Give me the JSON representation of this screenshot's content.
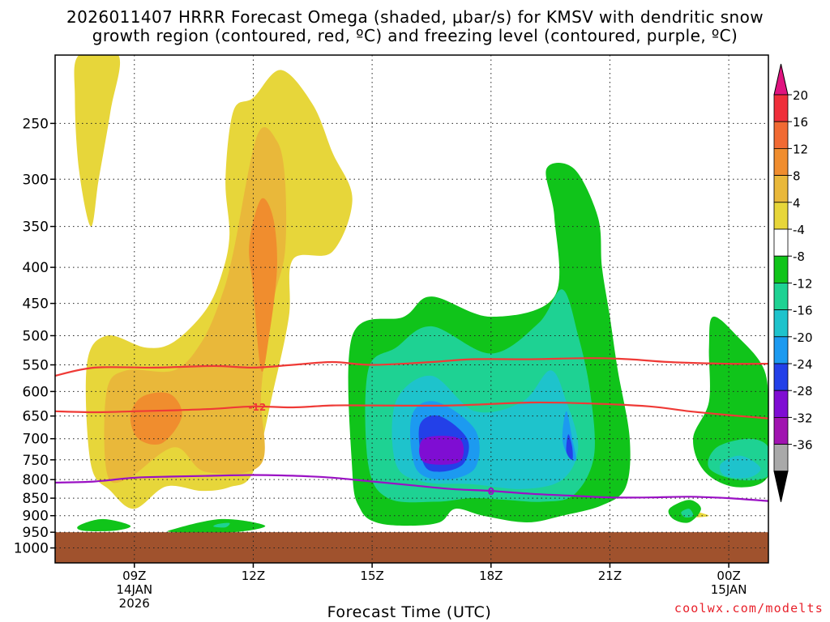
{
  "title_line1": "2026011407 HRRR Forecast Omega (shaded, μbar/s) for KMSV with dendritic snow",
  "title_line2": "growth region (contoured, red, ºC) and freezing level (contoured, purple, ºC)",
  "credit": "coolwx.com/modelts",
  "chart_data": {
    "type": "contour-timeheight",
    "xlabel": "Forecast Time (UTC)",
    "ylabel": "",
    "x_start_hour": 7,
    "x_end_hour": 25,
    "x_ticks": [
      {
        "hour": 9,
        "lines": [
          "09Z",
          "14JAN",
          "2026"
        ]
      },
      {
        "hour": 12,
        "lines": [
          "12Z"
        ]
      },
      {
        "hour": 15,
        "lines": [
          "15Z"
        ]
      },
      {
        "hour": 18,
        "lines": [
          "18Z"
        ]
      },
      {
        "hour": 21,
        "lines": [
          "21Z"
        ]
      },
      {
        "hour": 24,
        "lines": [
          "00Z",
          "15JAN"
        ]
      }
    ],
    "y_ticks": [
      250,
      300,
      350,
      400,
      450,
      500,
      550,
      600,
      650,
      700,
      750,
      800,
      850,
      900,
      950,
      1000
    ],
    "ylim_hPa": [
      200,
      1050
    ],
    "ground_level_hPa": 950,
    "colorbar": {
      "labels": [
        "20",
        "16",
        "12",
        "8",
        "4",
        "-4",
        "-8",
        "-12",
        "-16",
        "-20",
        "-24",
        "-28",
        "-32",
        "-36"
      ],
      "colors": [
        "#ef2e3a",
        "#f16a33",
        "#f08d2e",
        "#e9b83a",
        "#e7d63a",
        "#ffffff",
        "#10c41a",
        "#1ed293",
        "#1ec3cc",
        "#1c9af0",
        "#2340e8",
        "#7f0dd3",
        "#a014b0",
        "#a9a9a9"
      ],
      "top_cap": "#e0137f",
      "bottom_cap": "#000000"
    },
    "omega_regions": [
      {
        "value": 4,
        "color": "#e7d63a",
        "points": [
          [
            7.6,
            200
          ],
          [
            8.6,
            200
          ],
          [
            8.4,
            240
          ],
          [
            8.1,
            300
          ],
          [
            7.9,
            350
          ],
          [
            7.6,
            290
          ],
          [
            7.5,
            230
          ]
        ]
      },
      {
        "value": 4,
        "color": "#e7d63a",
        "points": [
          [
            11.5,
            240
          ],
          [
            12.0,
            230
          ],
          [
            12.7,
            210
          ],
          [
            13.5,
            235
          ],
          [
            14,
            275
          ],
          [
            14.5,
            320
          ],
          [
            14.0,
            380
          ],
          [
            13.0,
            390
          ],
          [
            12.9,
            470
          ],
          [
            12.5,
            600
          ],
          [
            12.0,
            780
          ],
          [
            11.4,
            820
          ],
          [
            10.7,
            830
          ],
          [
            9.8,
            818
          ],
          [
            9.0,
            880
          ],
          [
            8.4,
            830
          ],
          [
            7.9,
            760
          ],
          [
            7.8,
            550
          ],
          [
            8.3,
            500
          ],
          [
            9.3,
            520
          ],
          [
            10.0,
            510
          ],
          [
            10.8,
            460
          ],
          [
            11.2,
            410
          ],
          [
            11.4,
            360
          ],
          [
            11.3,
            300
          ]
        ]
      },
      {
        "value": 8,
        "color": "#e9b83a",
        "points": [
          [
            12.1,
            260
          ],
          [
            12.6,
            265
          ],
          [
            12.8,
            300
          ],
          [
            12.8,
            380
          ],
          [
            12.5,
            450
          ],
          [
            12.2,
            600
          ],
          [
            12.2,
            760
          ],
          [
            10.8,
            780
          ],
          [
            10.0,
            720
          ],
          [
            8.8,
            800
          ],
          [
            8.3,
            780
          ],
          [
            8.3,
            600
          ],
          [
            8.8,
            560
          ],
          [
            10,
            560
          ],
          [
            10.7,
            510
          ],
          [
            11.2,
            440
          ],
          [
            11.5,
            380
          ]
        ]
      },
      {
        "value": 12,
        "color": "#f08d2e",
        "points": [
          [
            12.2,
            320
          ],
          [
            12.5,
            340
          ],
          [
            12.6,
            400
          ],
          [
            12.4,
            500
          ],
          [
            12.2,
            560
          ],
          [
            12.0,
            430
          ],
          [
            11.9,
            370
          ]
        ]
      },
      {
        "value": 12,
        "color": "#f08d2e",
        "points": [
          [
            9.2,
            610
          ],
          [
            9.9,
            605
          ],
          [
            10.2,
            650
          ],
          [
            9.7,
            710
          ],
          [
            9.1,
            700
          ],
          [
            8.9,
            650
          ]
        ]
      },
      {
        "value": 4,
        "color": "#e7d63a",
        "points": [
          [
            22.8,
            880
          ],
          [
            23.5,
            900
          ],
          [
            22.9,
            905
          ],
          [
            22.6,
            895
          ]
        ]
      },
      {
        "value": -4,
        "color": "#10c41a",
        "points": [
          [
            14.5,
            500
          ],
          [
            15.8,
            470
          ],
          [
            16.5,
            440
          ],
          [
            18.0,
            470
          ],
          [
            19.6,
            440
          ],
          [
            19.6,
            340
          ],
          [
            19.4,
            290
          ],
          [
            20.1,
            290
          ],
          [
            20.7,
            340
          ],
          [
            20.8,
            400
          ],
          [
            21.0,
            470
          ],
          [
            21.2,
            560
          ],
          [
            21.5,
            700
          ],
          [
            21.4,
            820
          ],
          [
            20.8,
            870
          ],
          [
            19.8,
            900
          ],
          [
            18.9,
            920
          ],
          [
            17.8,
            900
          ],
          [
            17.1,
            880
          ],
          [
            16.7,
            920
          ],
          [
            15.9,
            930
          ],
          [
            15.1,
            920
          ],
          [
            14.7,
            880
          ],
          [
            14.5,
            780
          ]
        ]
      },
      {
        "value": -8,
        "color": "#1ed293",
        "points": [
          [
            14.9,
            560
          ],
          [
            15.6,
            520
          ],
          [
            16.5,
            485
          ],
          [
            18.0,
            530
          ],
          [
            19.2,
            480
          ],
          [
            19.8,
            430
          ],
          [
            20.2,
            500
          ],
          [
            20.5,
            600
          ],
          [
            20.6,
            740
          ],
          [
            20.1,
            840
          ],
          [
            19.3,
            860
          ],
          [
            18.4,
            855
          ],
          [
            17.5,
            850
          ],
          [
            16.6,
            860
          ],
          [
            15.4,
            850
          ],
          [
            14.9,
            760
          ]
        ]
      },
      {
        "value": -12,
        "color": "#1ec3cc",
        "points": [
          [
            15.6,
            620
          ],
          [
            16.5,
            570
          ],
          [
            17.6,
            640
          ],
          [
            18.8,
            620
          ],
          [
            19.5,
            560
          ],
          [
            19.9,
            620
          ],
          [
            20.2,
            720
          ],
          [
            19.8,
            800
          ],
          [
            18.8,
            825
          ],
          [
            17.5,
            812
          ],
          [
            16.3,
            806
          ],
          [
            15.6,
            760
          ]
        ]
      },
      {
        "value": -16,
        "color": "#1c9af0",
        "points": [
          [
            16.0,
            650
          ],
          [
            16.6,
            620
          ],
          [
            17.6,
            680
          ],
          [
            17.6,
            770
          ],
          [
            16.8,
            800
          ],
          [
            16.1,
            770
          ]
        ]
      },
      {
        "value": -16,
        "color": "#1c9af0",
        "points": [
          [
            19.9,
            640
          ],
          [
            20.05,
            700
          ],
          [
            20.15,
            750
          ],
          [
            19.95,
            740
          ],
          [
            19.8,
            700
          ]
        ]
      },
      {
        "value": -20,
        "color": "#2340e8",
        "points": [
          [
            16.2,
            670
          ],
          [
            16.7,
            650
          ],
          [
            17.4,
            700
          ],
          [
            17.3,
            760
          ],
          [
            16.7,
            780
          ],
          [
            16.3,
            760
          ]
        ]
      },
      {
        "value": -20,
        "color": "#2340e8",
        "points": [
          [
            19.95,
            690
          ],
          [
            20.05,
            720
          ],
          [
            20.05,
            750
          ],
          [
            19.9,
            730
          ]
        ]
      },
      {
        "value": -24,
        "color": "#7f0dd3",
        "points": [
          [
            16.3,
            700
          ],
          [
            17.2,
            700
          ],
          [
            17.2,
            755
          ],
          [
            16.3,
            755
          ]
        ]
      },
      {
        "value": -4,
        "color": "#10c41a",
        "points": [
          [
            23.6,
            470
          ],
          [
            24.2,
            500
          ],
          [
            24.9,
            560
          ],
          [
            25,
            660
          ],
          [
            25,
            790
          ],
          [
            24.2,
            820
          ],
          [
            23.4,
            780
          ],
          [
            23.1,
            700
          ],
          [
            23.5,
            620
          ],
          [
            23.5,
            520
          ]
        ]
      },
      {
        "value": -8,
        "color": "#1ed293",
        "points": [
          [
            23.7,
            720
          ],
          [
            24.5,
            700
          ],
          [
            25,
            720
          ],
          [
            25,
            790
          ],
          [
            24.2,
            800
          ],
          [
            23.5,
            770
          ]
        ]
      },
      {
        "value": -12,
        "color": "#1ec3cc",
        "points": [
          [
            23.8,
            760
          ],
          [
            24.3,
            740
          ],
          [
            24.8,
            770
          ],
          [
            24.5,
            795
          ],
          [
            23.9,
            790
          ]
        ]
      },
      {
        "value": -4,
        "color": "#10c41a",
        "points": [
          [
            22.5,
            880
          ],
          [
            23.0,
            855
          ],
          [
            23.3,
            880
          ],
          [
            23.0,
            920
          ],
          [
            22.6,
            910
          ]
        ]
      },
      {
        "value": -4,
        "color": "#10c41a",
        "points": [
          [
            7.6,
            930
          ],
          [
            8.2,
            910
          ],
          [
            8.9,
            930
          ],
          [
            8.5,
            945
          ],
          [
            7.7,
            945
          ]
        ]
      },
      {
        "value": -4,
        "color": "#10c41a",
        "points": [
          [
            10.0,
            940
          ],
          [
            11.2,
            910
          ],
          [
            12.3,
            930
          ],
          [
            11.5,
            950
          ],
          [
            10.0,
            950
          ]
        ]
      },
      {
        "value": -8,
        "color": "#1ed293",
        "points": [
          [
            22.8,
            890
          ],
          [
            23.0,
            880
          ],
          [
            23.1,
            900
          ],
          [
            22.9,
            905
          ]
        ]
      },
      {
        "value": -8,
        "color": "#1ed293",
        "points": [
          [
            11.1,
            925
          ],
          [
            11.4,
            922
          ],
          [
            11.3,
            935
          ],
          [
            11.0,
            933
          ]
        ]
      }
    ],
    "contours": [
      {
        "name": "",
        "color": "#ef3a36",
        "points": [
          [
            7,
            570
          ],
          [
            8,
            555
          ],
          [
            9.5,
            555
          ],
          [
            11,
            552
          ],
          [
            12,
            555
          ],
          [
            13,
            550
          ],
          [
            14,
            545
          ],
          [
            15,
            550
          ],
          [
            16.5,
            545
          ],
          [
            17.5,
            540
          ],
          [
            19,
            540
          ],
          [
            20.5,
            538
          ],
          [
            21.5,
            540
          ],
          [
            22.5,
            545
          ],
          [
            24,
            548
          ],
          [
            25,
            548
          ]
        ]
      },
      {
        "name": "",
        "color": "#ef3a36",
        "label": "-12",
        "label_at": 12.1,
        "points": [
          [
            7,
            640
          ],
          [
            8,
            642
          ],
          [
            9,
            640
          ],
          [
            10,
            638
          ],
          [
            11,
            635
          ],
          [
            12,
            630
          ],
          [
            13,
            632
          ],
          [
            14,
            628
          ],
          [
            15,
            628
          ],
          [
            17,
            628
          ],
          [
            19,
            622
          ],
          [
            20.5,
            624
          ],
          [
            22,
            630
          ],
          [
            23,
            640
          ],
          [
            24,
            648
          ],
          [
            25,
            655
          ]
        ]
      },
      {
        "name": "",
        "color": "#9a10c4",
        "label": "0",
        "label_at": 18.0,
        "points": [
          [
            7,
            808
          ],
          [
            8,
            805
          ],
          [
            9,
            795
          ],
          [
            10,
            792
          ],
          [
            11,
            790
          ],
          [
            12,
            788
          ],
          [
            13,
            790
          ],
          [
            14,
            795
          ],
          [
            15,
            805
          ],
          [
            16,
            815
          ],
          [
            17,
            825
          ],
          [
            18,
            830
          ],
          [
            19,
            838
          ],
          [
            20,
            843
          ],
          [
            21,
            848
          ],
          [
            22,
            848
          ],
          [
            23,
            846
          ],
          [
            24,
            850
          ],
          [
            25,
            858
          ]
        ]
      }
    ],
    "grid": true
  }
}
